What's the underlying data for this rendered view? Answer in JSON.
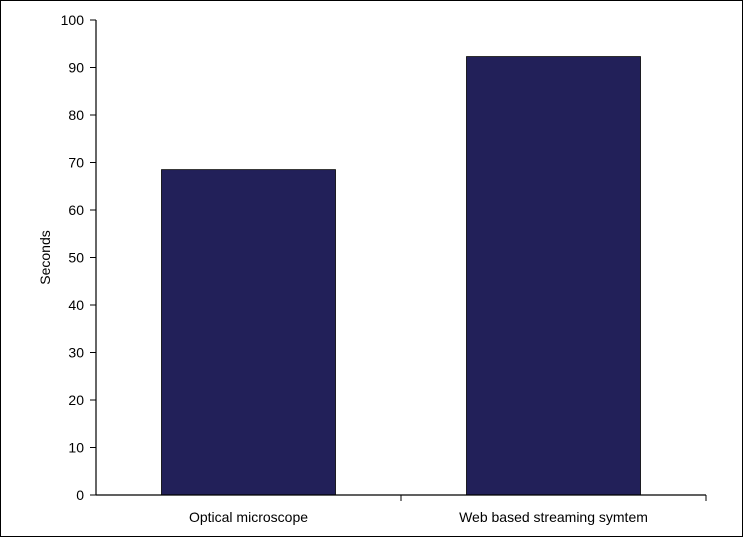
{
  "chart_data": {
    "type": "bar",
    "title": "",
    "xlabel": "",
    "ylabel": "Seconds",
    "categories": [
      "Optical microscope",
      "Web based streaming symtem"
    ],
    "values": [
      68.5,
      92.3
    ],
    "ylim": [
      0,
      100
    ],
    "yticks": [
      "0",
      "10",
      "20",
      "30",
      "40",
      "50",
      "60",
      "70",
      "80",
      "90",
      "100"
    ],
    "grid": false,
    "legend": "none",
    "bar_color": "#222059",
    "axis_color": "#000000"
  }
}
